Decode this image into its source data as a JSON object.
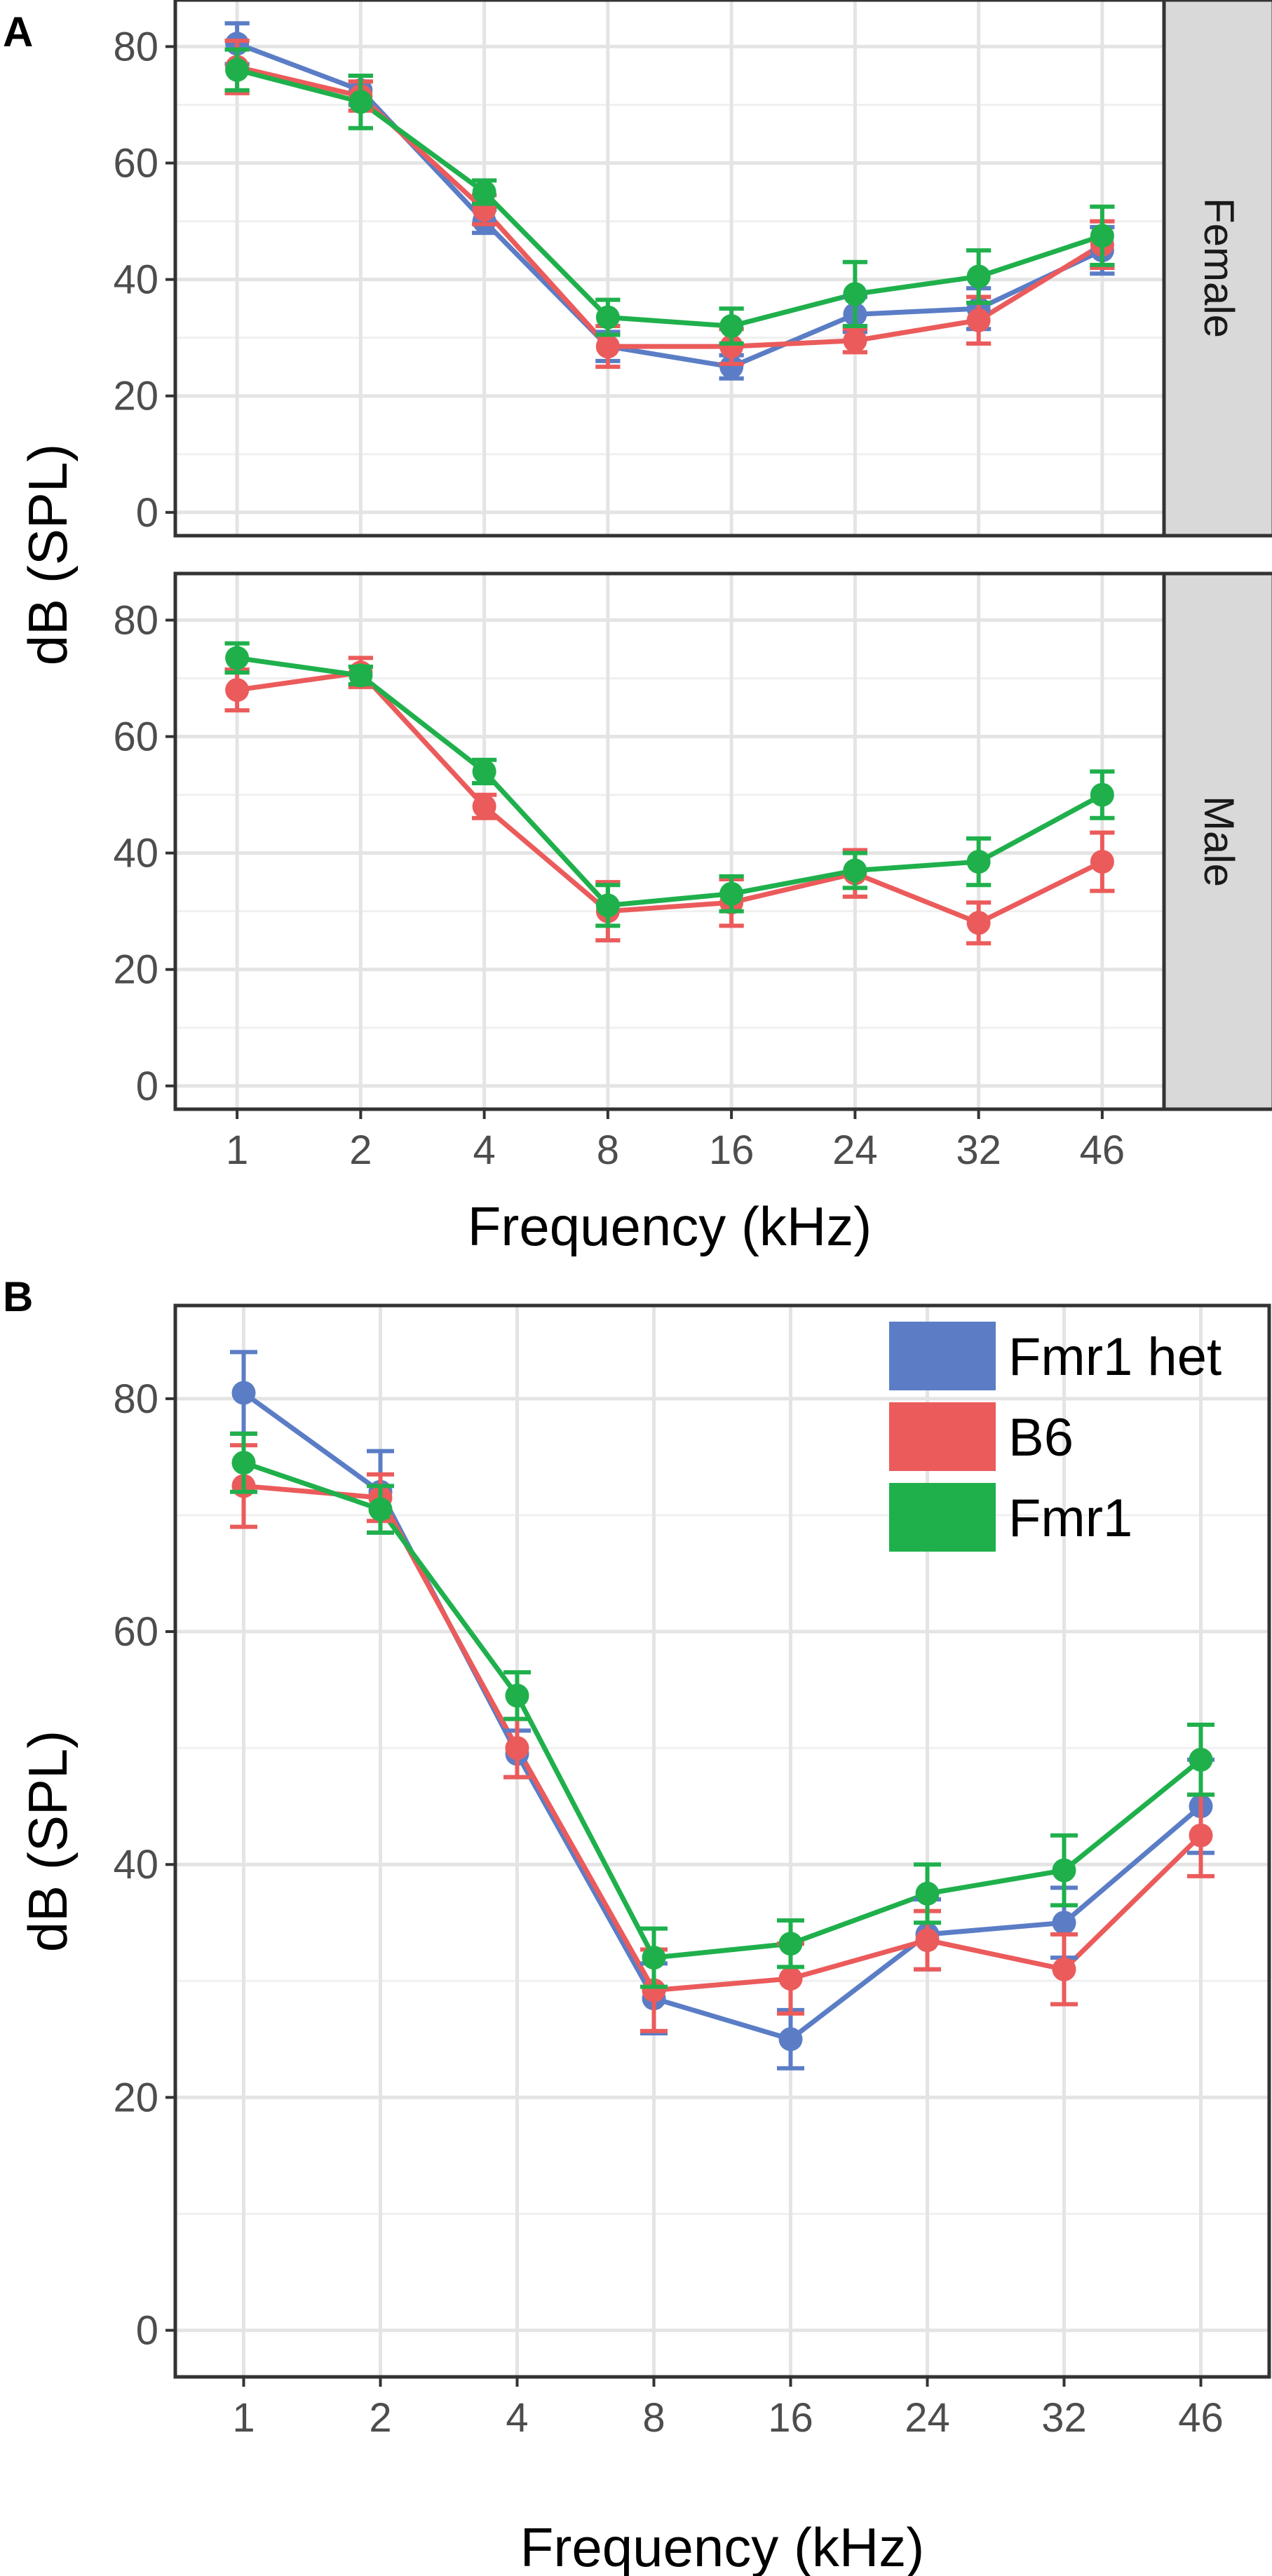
{
  "colors": {
    "Fmr1 het": "#5b7dc6",
    "B6": "#eb5b5b",
    "Fmr1": "#1fb04c"
  },
  "chart_data": [
    {
      "panel": "A",
      "facet": "Female",
      "type": "line",
      "categories": [
        "1",
        "2",
        "4",
        "8",
        "16",
        "24",
        "32",
        "46"
      ],
      "xlabel": "Frequency (kHz)",
      "ylabel": "dB (SPL)",
      "ylim": [
        -4,
        88
      ],
      "yticks": [
        0,
        20,
        40,
        60,
        80
      ],
      "series": [
        {
          "name": "Fmr1 het",
          "values": [
            80.5,
            72.5,
            50,
            28.5,
            25,
            34,
            35,
            45
          ],
          "err": [
            3.5,
            2.5,
            2,
            2.5,
            2,
            3,
            3.5,
            4
          ]
        },
        {
          "name": "B6",
          "values": [
            76.5,
            71.5,
            52,
            28.5,
            28.5,
            29.5,
            33,
            46
          ],
          "err": [
            4.5,
            2.5,
            2.5,
            3.5,
            3,
            2,
            4,
            4
          ]
        },
        {
          "name": "Fmr1",
          "values": [
            76,
            70.5,
            55,
            33.5,
            32,
            37.5,
            40.5,
            47.5
          ],
          "err": [
            3.5,
            4.5,
            2,
            3,
            3,
            5.5,
            4.5,
            5
          ]
        }
      ]
    },
    {
      "panel": "A",
      "facet": "Male",
      "type": "line",
      "categories": [
        "1",
        "2",
        "4",
        "8",
        "16",
        "24",
        "32",
        "46"
      ],
      "xlabel": "Frequency (kHz)",
      "ylabel": "dB (SPL)",
      "ylim": [
        -4,
        88
      ],
      "yticks": [
        0,
        20,
        40,
        60,
        80
      ],
      "series": [
        {
          "name": "B6",
          "values": [
            68,
            71,
            48,
            30,
            31.5,
            36.5,
            28,
            38.5
          ],
          "err": [
            3.5,
            2.5,
            2,
            5,
            4,
            4,
            3.5,
            5
          ]
        },
        {
          "name": "Fmr1",
          "values": [
            73.5,
            70.5,
            54,
            31,
            33,
            37,
            38.5,
            50
          ],
          "err": [
            2.5,
            1.5,
            2,
            3.5,
            3,
            3,
            4,
            4
          ]
        }
      ]
    },
    {
      "panel": "B",
      "type": "line",
      "categories": [
        "1",
        "2",
        "4",
        "8",
        "16",
        "24",
        "32",
        "46"
      ],
      "xlabel": "Frequency (kHz)",
      "ylabel": "dB (SPL)",
      "ylim": [
        -4,
        88
      ],
      "yticks": [
        0,
        20,
        40,
        60,
        80
      ],
      "legend": {
        "position": "top-right",
        "entries": [
          "Fmr1 het",
          "B6",
          "Fmr1"
        ]
      },
      "series": [
        {
          "name": "Fmr1 het",
          "values": [
            80.5,
            72,
            49.5,
            28.5,
            25,
            34,
            35,
            45
          ],
          "err": [
            3.5,
            3.5,
            2,
            3,
            2.5,
            3,
            3,
            4
          ]
        },
        {
          "name": "B6",
          "values": [
            72.5,
            71.5,
            50,
            29.2,
            30.2,
            33.5,
            31,
            42.5
          ],
          "err": [
            3.5,
            2,
            2.5,
            3.5,
            3,
            2.5,
            3,
            3.5
          ]
        },
        {
          "name": "Fmr1",
          "values": [
            74.5,
            70.5,
            54.5,
            32,
            33.2,
            37.5,
            39.5,
            49
          ],
          "err": [
            2.5,
            2,
            2,
            2.5,
            2,
            2.5,
            3,
            3
          ]
        }
      ]
    }
  ]
}
